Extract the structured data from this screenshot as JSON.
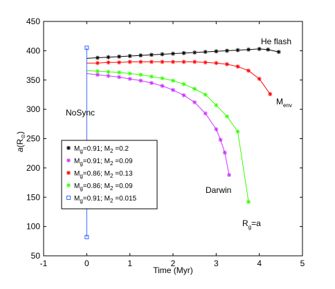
{
  "chart_data": {
    "type": "line",
    "xlabel": "Time (Myr)",
    "ylabel_main": "a",
    "ylabel_paren": "(R",
    "ylabel_sub": "⊙",
    "ylabel_close": ")",
    "xlim": [
      -1,
      5
    ],
    "ylim": [
      50,
      450
    ],
    "xticks": [
      -1,
      0,
      1,
      2,
      3,
      4,
      5
    ],
    "yticks": [
      50,
      100,
      150,
      200,
      250,
      300,
      350,
      400,
      450
    ],
    "grid": false,
    "legend_position": "lower-left",
    "series": [
      {
        "legend": {
          "m1": "M",
          "s1": "g",
          "mid": "=0.91; M",
          "s2": "2",
          "end": " =0.2"
        },
        "color": "#000000",
        "marker": "star",
        "x": [
          0,
          0.25,
          0.5,
          0.75,
          1.0,
          1.25,
          1.5,
          1.75,
          2.0,
          2.25,
          2.5,
          2.75,
          3.0,
          3.25,
          3.5,
          3.75,
          4.0,
          4.2,
          4.45
        ],
        "y": [
          387,
          388,
          389,
          390,
          391,
          392,
          393,
          394,
          395,
          396,
          397,
          398,
          399,
          400,
          401,
          402,
          403,
          402,
          398
        ]
      },
      {
        "legend": {
          "m1": "M",
          "s1": "g",
          "mid": "=0.91; M",
          "s2": "2",
          "end": " =0.09"
        },
        "color": "#cc33ff",
        "marker": "star",
        "x": [
          0,
          0.25,
          0.5,
          0.75,
          1.0,
          1.25,
          1.5,
          1.75,
          2.0,
          2.25,
          2.5,
          2.75,
          3.0,
          3.1,
          3.2,
          3.3
        ],
        "y": [
          361,
          359,
          357,
          355,
          352,
          349,
          345,
          340,
          333,
          324,
          312,
          293,
          266,
          248,
          226,
          188
        ]
      },
      {
        "legend": {
          "m1": "M",
          "s1": "g",
          "mid": "=0.86; M",
          "s2": "2",
          "end": " =0.13"
        },
        "color": "#ff0000",
        "marker": "star",
        "x": [
          0,
          0.25,
          0.5,
          0.75,
          1.0,
          1.25,
          1.5,
          1.75,
          2.0,
          2.25,
          2.5,
          2.75,
          3.0,
          3.25,
          3.5,
          3.75,
          4.0,
          4.25
        ],
        "y": [
          379,
          379,
          380,
          380,
          381,
          381,
          381,
          381,
          381,
          381,
          381,
          380,
          379,
          377,
          373,
          366,
          352,
          326
        ]
      },
      {
        "legend": {
          "m1": "M",
          "s1": "g",
          "mid": "=0.86; M",
          "s2": "2",
          "end": " =0.09"
        },
        "color": "#33ff00",
        "marker": "star",
        "x": [
          0,
          0.25,
          0.5,
          0.75,
          1.0,
          1.25,
          1.5,
          1.75,
          2.0,
          2.25,
          2.5,
          2.75,
          3.0,
          3.25,
          3.5,
          3.75
        ],
        "y": [
          366,
          365,
          364,
          363,
          361,
          359,
          356,
          353,
          349,
          343,
          335,
          325,
          307,
          288,
          262,
          142
        ]
      },
      {
        "legend": {
          "m1": "M",
          "s1": "g",
          "mid": "=0.91; M",
          "s2": "2",
          "end": " =0.015"
        },
        "color": "#3366ff",
        "marker": "square",
        "x": [
          0,
          0
        ],
        "y": [
          405,
          82
        ]
      }
    ],
    "annotations": [
      {
        "id": "he-flash",
        "text": "He flash"
      },
      {
        "id": "menv",
        "text": "M",
        "sub": "env"
      },
      {
        "id": "nosync",
        "text": "NoSync"
      },
      {
        "id": "darwin",
        "text": "Darwin"
      },
      {
        "id": "rg",
        "text": "R",
        "sub": "g",
        "after": "=a"
      }
    ]
  }
}
